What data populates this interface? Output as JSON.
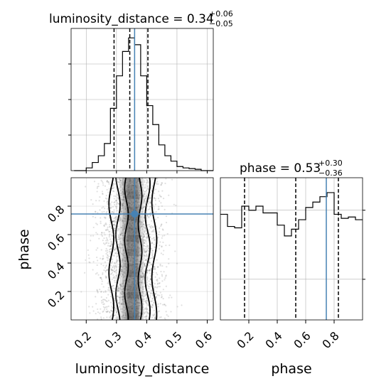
{
  "chart_data": [
    {
      "type": "histogram",
      "panel": "top-left",
      "parameter": "luminosity_distance",
      "title": {
        "main": "luminosity_distance = 0.34",
        "upper": "+0.06",
        "lower": "−0.05"
      },
      "bin_edges": [
        0.16,
        0.18,
        0.2,
        0.22,
        0.24,
        0.26,
        0.28,
        0.3,
        0.32,
        0.34,
        0.36,
        0.38,
        0.4,
        0.42,
        0.44,
        0.46,
        0.48,
        0.5,
        0.52,
        0.54,
        0.56,
        0.58,
        0.6,
        0.62
      ],
      "counts": [
        0.0,
        0.0,
        0.02,
        0.06,
        0.11,
        0.2,
        0.46,
        0.7,
        0.88,
        0.98,
        0.93,
        0.7,
        0.48,
        0.34,
        0.19,
        0.11,
        0.07,
        0.03,
        0.02,
        0.015,
        0.01,
        0.0,
        0.0
      ],
      "quantile_lines": [
        0.292,
        0.344,
        0.404
      ],
      "truth": 0.36,
      "xlim": [
        0.15,
        0.62
      ],
      "grid": true
    },
    {
      "type": "histogram",
      "panel": "bottom-right",
      "parameter": "phase",
      "title": {
        "main": "phase = 0.53",
        "upper": "+0.30",
        "lower": "−0.36"
      },
      "bin_edges": [
        0.0,
        0.05,
        0.1,
        0.15,
        0.2,
        0.25,
        0.3,
        0.35,
        0.4,
        0.45,
        0.5,
        0.55,
        0.6,
        0.65,
        0.7,
        0.75,
        0.8,
        0.85,
        0.9,
        0.95,
        1.0
      ],
      "counts": [
        0.78,
        0.69,
        0.68,
        0.84,
        0.81,
        0.84,
        0.79,
        0.79,
        0.7,
        0.62,
        0.67,
        0.74,
        0.83,
        0.87,
        0.91,
        0.94,
        0.78,
        0.75,
        0.76,
        0.74
      ],
      "quantile_lines": [
        0.17,
        0.53,
        0.83
      ],
      "truth": 0.745,
      "xlim": [
        0.0,
        1.0
      ],
      "xticks": [
        "0.2",
        "0.4",
        "0.6",
        "0.8"
      ],
      "xlabel": "phase",
      "grid": true
    },
    {
      "type": "scatter",
      "panel": "bottom-left",
      "x_parameter": "luminosity_distance",
      "y_parameter": "phase",
      "xlabel": "luminosity_distance",
      "ylabel": "phase",
      "xlim": [
        0.15,
        0.62
      ],
      "ylim": [
        0.0,
        1.0
      ],
      "xticks": [
        "0.2",
        "0.3",
        "0.4",
        "0.5",
        "0.6"
      ],
      "yticks": [
        "0.2",
        "0.4",
        "0.6",
        "0.8"
      ],
      "truth": [
        0.36,
        0.745
      ],
      "x_center": 0.35,
      "x_spread": 0.05,
      "n_points": 2500,
      "grid": true
    }
  ],
  "colors": {
    "truth": "#4682b4",
    "hist": "#000000",
    "grid": "#b0b0b0",
    "points": "#000000"
  }
}
